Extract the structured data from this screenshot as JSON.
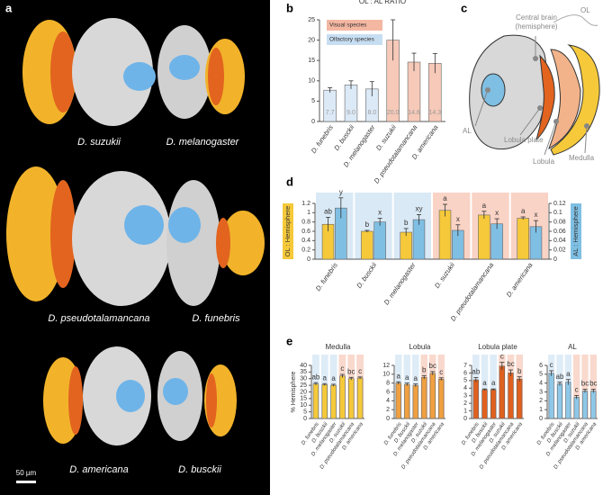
{
  "panel_labels": [
    "a",
    "b",
    "c",
    "d",
    "e"
  ],
  "panel_a": {
    "species": [
      "D. suzukii",
      "D. melanogaster",
      "D. pseudotalamancana",
      "D. funebris",
      "D. americana",
      "D. busckii"
    ],
    "scale_bar": "50 µm"
  },
  "panel_c": {
    "central_brain": [
      "Central brain",
      "(hemisphere)"
    ],
    "ol": "OL",
    "al": "AL",
    "lobula_plate": "Lobula plate",
    "lobula": "Lobula",
    "medulla": "Medulla"
  },
  "chart_data": [
    {
      "type": "bar",
      "title": "OL : AL  RATIO",
      "categories": [
        "D. funebris",
        "D. busckii",
        "D. melanogaster",
        "D. suzukii",
        "D. pseudotalamancana",
        "D. americana"
      ],
      "values": [
        7.7,
        9.0,
        8.0,
        20.0,
        14.6,
        14.3
      ],
      "value_labels": [
        "7.7",
        "9.0",
        "8.0",
        "20.0",
        "14.6",
        "14.3"
      ],
      "errors": [
        0.6,
        1.0,
        1.8,
        5.0,
        2.2,
        2.4
      ],
      "colors": [
        "#dce9f6",
        "#dce9f6",
        "#dce9f6",
        "#f6c9b8",
        "#f6c9b8",
        "#f6c9b8"
      ],
      "legend": [
        {
          "name": "Visual species",
          "color": "#f4b7a2"
        },
        {
          "name": "Olfactory species",
          "color": "#c7def2"
        }
      ],
      "ylim": [
        0,
        25
      ],
      "yticks": [
        0,
        5,
        10,
        15,
        20,
        25
      ]
    },
    {
      "type": "bar",
      "categories": [
        "D. funebris",
        "D. busckii",
        "D. melanogaster",
        "D. suzukii",
        "D. pseudotalamancana",
        "D. americana"
      ],
      "backgrounds": [
        "#cfe3f3",
        "#cfe3f3",
        "#cfe3f3",
        "#f7c8b6",
        "#f7c8b6",
        "#f7c8b6"
      ],
      "series": [
        {
          "name": "OL : Hemisphere",
          "color": "#f5c93a",
          "values": [
            0.75,
            0.6,
            0.58,
            1.05,
            0.95,
            0.88
          ],
          "errors": [
            0.15,
            0.02,
            0.08,
            0.13,
            0.08,
            0.03
          ],
          "annotations": [
            "ab",
            "b",
            "b",
            "a",
            "a",
            "a"
          ]
        },
        {
          "name": "AL : Hemisphere",
          "color": "#7fbfe3",
          "axis": "y2",
          "values": [
            0.11,
            0.08,
            0.085,
            0.062,
            0.076,
            0.07
          ],
          "errors": [
            0.022,
            0.008,
            0.011,
            0.012,
            0.011,
            0.013
          ],
          "annotations": [
            "y",
            "x",
            "xy",
            "x",
            "x",
            "x"
          ]
        }
      ],
      "ylim": [
        0,
        1.2
      ],
      "yticks": [
        0,
        0.2,
        0.4,
        0.6,
        0.8,
        1,
        1.2
      ],
      "y2lim": [
        0,
        0.12
      ],
      "y2ticks": [
        0,
        0.02,
        0.04,
        0.06,
        0.08,
        0.1,
        0.12
      ]
    },
    {
      "type": "bar",
      "title": "Medulla",
      "ylabel": "% Hemisphere",
      "categories": [
        "D. funebris",
        "D. busckii",
        "D. melanogaster",
        "D. suzukii",
        "D. pseudotalamancana",
        "D. americana"
      ],
      "backgrounds": [
        "#d6e7f5",
        "#d6e7f5",
        "#d6e7f5",
        "#f8cfc0",
        "#f8cfc0",
        "#f8cfc0"
      ],
      "values": [
        26,
        25.5,
        25,
        32,
        30,
        30.5
      ],
      "errors": [
        1,
        0.8,
        0.8,
        1.2,
        1,
        0.8
      ],
      "annotations": [
        "ab",
        "a",
        "a",
        "c",
        "bc",
        "c"
      ],
      "color": "#f5c93a",
      "ylim": [
        0,
        40
      ],
      "yticks": [
        0,
        5,
        10,
        15,
        20,
        25,
        30,
        35,
        40
      ]
    },
    {
      "type": "bar",
      "title": "Lobula",
      "categories": [
        "D. funebris",
        "D. busckii",
        "D. melanogaster",
        "D. suzukii",
        "D. pseudotalamancana",
        "D. americana"
      ],
      "backgrounds": [
        "#d6e7f5",
        "#d6e7f5",
        "#d6e7f5",
        "#f8cfc0",
        "#f8cfc0",
        "#f8cfc0"
      ],
      "values": [
        8,
        7.7,
        7.5,
        9.3,
        10.2,
        8.9
      ],
      "errors": [
        0.3,
        0.3,
        0.3,
        0.4,
        0.4,
        0.3
      ],
      "annotations": [
        "a",
        "a",
        "a",
        "b",
        "bc",
        "c"
      ],
      "color": "#f0a040",
      "ylim": [
        0,
        12
      ],
      "yticks": [
        0,
        2,
        4,
        6,
        8,
        10,
        12
      ]
    },
    {
      "type": "bar",
      "title": "Lobula plate",
      "categories": [
        "D. funebris",
        "D. busckii",
        "D. melanogaster",
        "D. suzukii",
        "D. pseudotalamancana",
        "D. americana"
      ],
      "backgrounds": [
        "#d6e7f5",
        "#d6e7f5",
        "#d6e7f5",
        "#f8cfc0",
        "#f8cfc0",
        "#f8cfc0"
      ],
      "values": [
        5.1,
        3.8,
        3.8,
        6.9,
        6.0,
        5.2
      ],
      "errors": [
        0.3,
        0.1,
        0.1,
        0.5,
        0.4,
        0.3
      ],
      "annotations": [
        "ab",
        "a",
        "a",
        "c",
        "bc",
        "b"
      ],
      "color": "#e0601e",
      "ylim": [
        0,
        7
      ],
      "yticks": [
        0,
        1,
        2,
        3,
        4,
        5,
        6,
        7
      ]
    },
    {
      "type": "bar",
      "title": "AL",
      "categories": [
        "D. funebris",
        "D. busckii",
        "D. melanogaster",
        "D. suzukii",
        "D. pseudotalamancana",
        "D. americana"
      ],
      "backgrounds": [
        "#d6e7f5",
        "#d6e7f5",
        "#d6e7f5",
        "#f8cfc0",
        "#f8cfc0",
        "#f8cfc0"
      ],
      "values": [
        5.1,
        3.9,
        4.1,
        2.4,
        3.1,
        3.1
      ],
      "errors": [
        0.3,
        0.2,
        0.3,
        0.2,
        0.2,
        0.2
      ],
      "annotations": [
        "c",
        "ab",
        "a",
        "c",
        "bc",
        "bc"
      ],
      "color": "#8ec8e8",
      "ylim": [
        0,
        6
      ],
      "yticks": [
        0,
        1,
        2,
        3,
        4,
        5,
        6
      ]
    }
  ]
}
